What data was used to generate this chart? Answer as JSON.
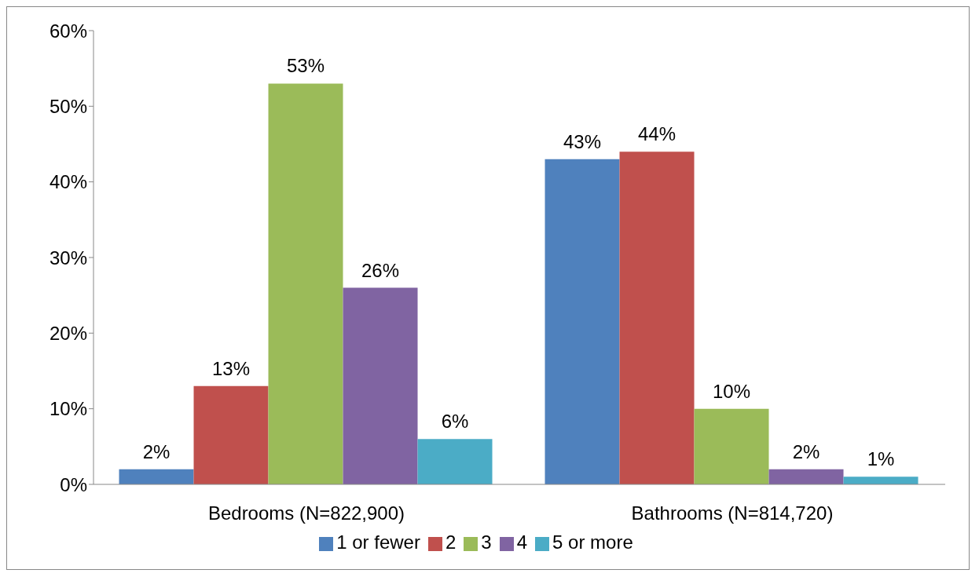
{
  "chart_data": {
    "type": "bar",
    "categories": [
      "Bedrooms (N=822,900)",
      "Bathrooms  (N=814,720)"
    ],
    "series": [
      {
        "name": "1 or fewer",
        "color": "#4f81bd",
        "values": [
          2,
          43
        ],
        "value_labels": [
          "2%",
          "43%"
        ]
      },
      {
        "name": "2",
        "color": "#c0504d",
        "values": [
          13,
          44
        ],
        "value_labels": [
          "13%",
          "44%"
        ]
      },
      {
        "name": "3",
        "color": "#9bbb59",
        "values": [
          53,
          10
        ],
        "value_labels": [
          "53%",
          "10%"
        ]
      },
      {
        "name": "4",
        "color": "#8064a2",
        "values": [
          26,
          2
        ],
        "value_labels": [
          "26%",
          "2%"
        ]
      },
      {
        "name": "5 or more",
        "color": "#4bacc6",
        "values": [
          6,
          1
        ],
        "value_labels": [
          "6%",
          "1%"
        ]
      }
    ],
    "ylim": [
      0,
      60
    ],
    "yticks": [
      {
        "value": 0,
        "label": "0%"
      },
      {
        "value": 10,
        "label": "10%"
      },
      {
        "value": 20,
        "label": "20%"
      },
      {
        "value": 30,
        "label": "30%"
      },
      {
        "value": 40,
        "label": "40%"
      },
      {
        "value": 50,
        "label": "50%"
      },
      {
        "value": 60,
        "label": "60%"
      }
    ],
    "grid": false,
    "legend": "bottom"
  }
}
